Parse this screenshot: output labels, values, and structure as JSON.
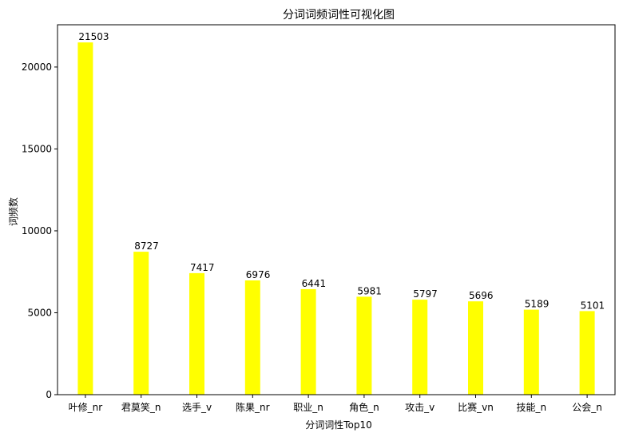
{
  "chart_data": {
    "type": "bar",
    "title": "分词词频词性可视化图",
    "xlabel": "分词词性Top10",
    "ylabel": "词频数",
    "categories": [
      "叶修_nr",
      "君莫笑_n",
      "选手_v",
      "陈果_nr",
      "职业_n",
      "角色_n",
      "攻击_v",
      "比赛_vn",
      "技能_n",
      "公会_n"
    ],
    "values": [
      21503,
      8727,
      7417,
      6976,
      6441,
      5981,
      5797,
      5696,
      5189,
      5101
    ],
    "value_labels": [
      "21503",
      "8727",
      "7417",
      "6976",
      "6441",
      "5981",
      "5797",
      "5696",
      "5189",
      "5101"
    ],
    "ylim": [
      0,
      22580
    ],
    "yticks": [
      0,
      5000,
      10000,
      15000,
      20000
    ],
    "ytick_labels": [
      "0",
      "5000",
      "10000",
      "15000",
      "20000"
    ],
    "bar_color": "#ffff00",
    "grid": false,
    "legend": "none"
  }
}
